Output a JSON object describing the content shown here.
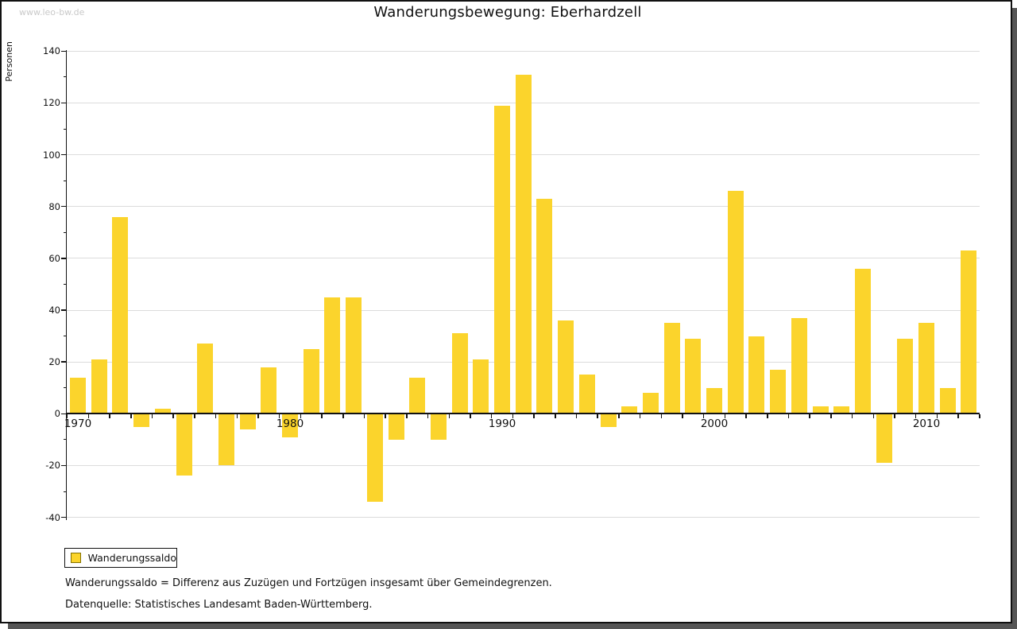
{
  "watermark": "www.leo-bw.de",
  "title": "Wanderungsbewegung: Eberhardzell",
  "y_axis_label": "Personen",
  "legend": {
    "label": "Wanderungssaldo"
  },
  "footnotes": [
    "Wanderungssaldo = Differenz aus Zuzügen und Fortzügen insgesamt über Gemeindegrenzen.",
    "Datenquelle: Statistisches Landesamt Baden-Württemberg."
  ],
  "colors": {
    "bar": "#FBD42C",
    "legend_swatch_border": "#857200",
    "gridline": "#dcdcdc",
    "axis": "#111111",
    "watermark": "#c9c9c9",
    "shadow": "#565656"
  },
  "chart_data": {
    "type": "bar",
    "title": "Wanderungsbewegung: Eberhardzell",
    "series_name": "Wanderungssaldo",
    "xlabel": "",
    "ylabel": "Personen",
    "ylim": [
      -40,
      140
    ],
    "ytick_step": 20,
    "ytick_minor_step": 10,
    "grid": true,
    "legend_position": "bottom-left",
    "labeled_x_ticks": [
      1970,
      1980,
      1990,
      2000,
      2010
    ],
    "categories": [
      1970,
      1971,
      1972,
      1973,
      1974,
      1975,
      1976,
      1977,
      1978,
      1979,
      1980,
      1981,
      1982,
      1983,
      1984,
      1985,
      1986,
      1987,
      1988,
      1989,
      1990,
      1991,
      1992,
      1993,
      1994,
      1995,
      1996,
      1997,
      1998,
      1999,
      2000,
      2001,
      2002,
      2003,
      2004,
      2005,
      2006,
      2007,
      2008,
      2009,
      2010,
      2011,
      2012
    ],
    "values": [
      14,
      21,
      76,
      -5,
      2,
      -24,
      27,
      -20,
      -6,
      18,
      -9,
      25,
      45,
      45,
      -34,
      -10,
      14,
      -10,
      31,
      21,
      119,
      131,
      83,
      36,
      15,
      -5,
      3,
      8,
      35,
      29,
      10,
      86,
      30,
      17,
      37,
      3,
      3,
      56,
      -19,
      29,
      35,
      10,
      63
    ]
  }
}
